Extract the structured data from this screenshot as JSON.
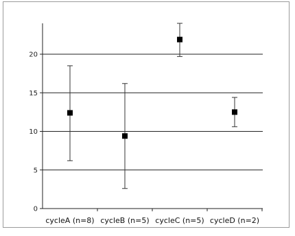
{
  "chart_data": {
    "type": "scatter",
    "title": "",
    "xlabel": "",
    "ylabel": "",
    "ylim": [
      0,
      24
    ],
    "yticks": [
      0,
      5,
      10,
      15,
      20
    ],
    "grid": "horizontal",
    "categories": [
      "cycleA (n=8)",
      "cycleB (n=5)",
      "cycleC (n=5)",
      "cycleD (n=2)"
    ],
    "series": [
      {
        "values": [
          12.4,
          9.4,
          21.9,
          12.5
        ],
        "error_low": [
          6.2,
          2.6,
          19.7,
          10.6
        ],
        "error_high": [
          18.5,
          16.2,
          24.0,
          14.4
        ]
      }
    ],
    "marker": "square",
    "color": "#000000"
  }
}
